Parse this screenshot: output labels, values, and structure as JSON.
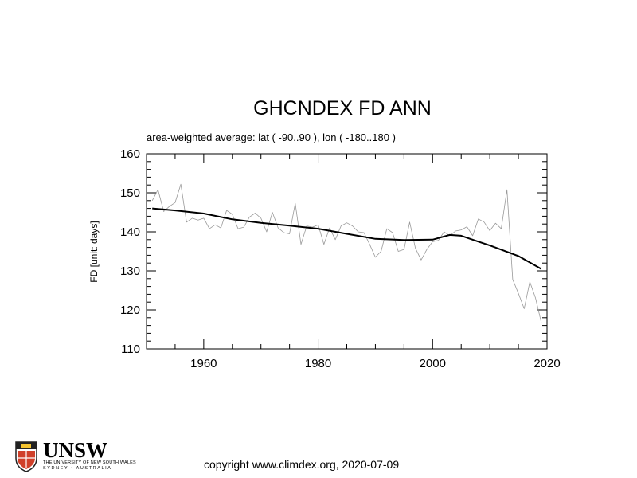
{
  "chart_data": {
    "type": "line",
    "title": "GHCNDEX FD ANN",
    "subtitle": "area-weighted average: lat ( -90..90 ), lon ( -180..180 )",
    "ylabel": "FD [unit: days]",
    "xlabel": "",
    "xlim": [
      1950,
      2020
    ],
    "ylim": [
      110,
      160
    ],
    "xticks": [
      "1960",
      "1980",
      "2000",
      "2020"
    ],
    "yticks": [
      "110",
      "120",
      "130",
      "140",
      "150",
      "160"
    ],
    "grid": false,
    "series": [
      {
        "style": "thin-grey",
        "x": [
          1951,
          1952,
          1953,
          1954,
          1955,
          1956,
          1957,
          1958,
          1959,
          1960,
          1961,
          1962,
          1963,
          1964,
          1965,
          1966,
          1967,
          1968,
          1969,
          1970,
          1971,
          1972,
          1973,
          1974,
          1975,
          1976,
          1977,
          1978,
          1979,
          1980,
          1981,
          1982,
          1983,
          1984,
          1985,
          1986,
          1987,
          1988,
          1989,
          1990,
          1991,
          1992,
          1993,
          1994,
          1995,
          1996,
          1997,
          1998,
          1999,
          2000,
          2001,
          2002,
          2003,
          2004,
          2005,
          2006,
          2007,
          2008,
          2009,
          2010,
          2011,
          2012,
          2013,
          2014,
          2015,
          2016,
          2017,
          2018,
          2019
        ],
        "y": [
          148.0,
          150.8,
          145.2,
          146.5,
          147.5,
          152.2,
          142.5,
          143.5,
          143.0,
          143.5,
          140.8,
          141.8,
          141.0,
          145.5,
          144.5,
          140.8,
          141.2,
          143.8,
          144.8,
          143.5,
          140.0,
          145.0,
          141.0,
          139.8,
          139.5,
          147.3,
          136.8,
          141.5,
          141.2,
          141.8,
          136.8,
          141.0,
          138.0,
          141.5,
          142.3,
          141.5,
          140.0,
          139.8,
          136.8,
          133.5,
          135.0,
          140.8,
          139.8,
          135.0,
          135.5,
          142.5,
          135.8,
          132.8,
          135.5,
          137.5,
          137.8,
          140.0,
          139.0,
          140.2,
          140.5,
          141.3,
          139.0,
          143.3,
          142.5,
          140.3,
          142.2,
          140.8,
          150.8,
          127.8,
          124.2,
          120.3,
          127.2,
          123.0,
          116.8
        ]
      },
      {
        "style": "thick-black",
        "x": [
          1951,
          1955,
          1960,
          1965,
          1970,
          1975,
          1980,
          1985,
          1990,
          1995,
          2000,
          2003,
          2005,
          2008,
          2010,
          2015,
          2019
        ],
        "y": [
          146.0,
          145.5,
          144.7,
          143.2,
          142.3,
          141.6,
          140.8,
          139.5,
          138.2,
          137.9,
          138.0,
          139.2,
          139.0,
          137.5,
          136.5,
          133.8,
          130.5
        ]
      }
    ]
  },
  "logo": {
    "name": "UNSW",
    "line1": "THE UNIVERSITY OF NEW SOUTH WALES",
    "line2": "SYDNEY • AUSTRALIA"
  },
  "footer": {
    "copyright": "copyright www.climdex.org, 2020-07-09"
  }
}
